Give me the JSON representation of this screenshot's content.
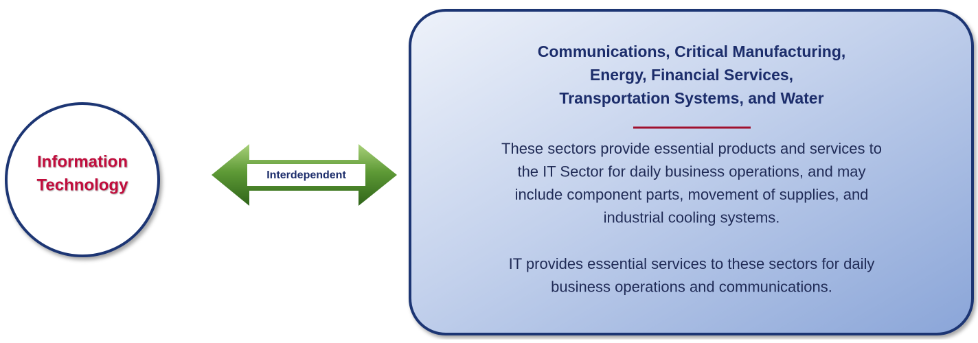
{
  "circle": {
    "label": [
      "Information",
      "Technology"
    ]
  },
  "arrow": {
    "label": "Interdependent"
  },
  "box": {
    "title": [
      "Communications, Critical Manufacturing,",
      "Energy, Financial Services,",
      "Transportation Systems, and Water"
    ],
    "paragraphs": [
      [
        "These sectors provide essential products and services to",
        "the IT Sector for daily business operations, and may",
        "include component parts, movement of supplies, and",
        "industrial cooling systems."
      ],
      [
        "IT provides essential services to these sectors for daily",
        "business operations and communications."
      ]
    ]
  }
}
